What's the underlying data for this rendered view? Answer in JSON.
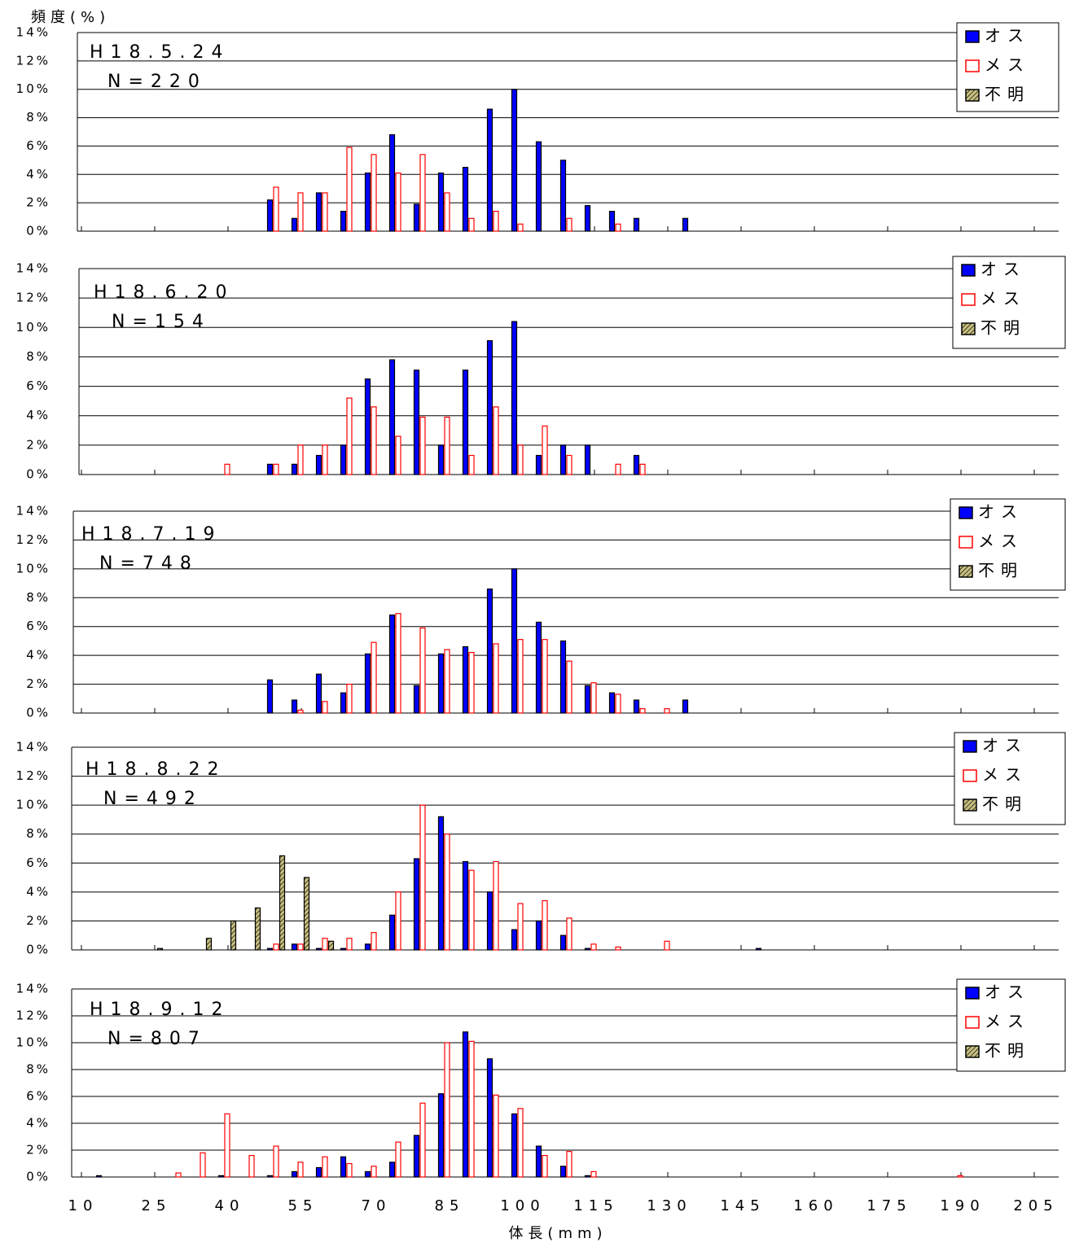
{
  "chart_data": [
    {
      "type": "bar",
      "title": "H18.5.24",
      "subtitle": "N=220",
      "y_label": "頻度(%)",
      "ylim": [
        0,
        14
      ],
      "yticks": [
        {
          "value": 0,
          "label": "0%"
        },
        {
          "value": 2,
          "label": "2%"
        },
        {
          "value": 4,
          "label": "4%"
        },
        {
          "value": 6,
          "label": "6%"
        },
        {
          "value": 8,
          "label": "8%"
        },
        {
          "value": 10,
          "label": "10%"
        },
        {
          "value": 12,
          "label": "12%"
        },
        {
          "value": 14,
          "label": "14%"
        }
      ],
      "grid": true,
      "x": [
        50,
        55,
        60,
        65,
        70,
        75,
        80,
        85,
        90,
        95,
        100,
        105,
        110,
        115,
        120,
        125,
        130,
        135
      ],
      "series": [
        {
          "name": "オス",
          "color": "#0000ff",
          "values": [
            2.2,
            0.9,
            2.7,
            1.4,
            4.1,
            6.8,
            1.9,
            4.1,
            4.5,
            8.6,
            10.0,
            6.3,
            5.0,
            1.8,
            1.4,
            0.9,
            0,
            0.9
          ]
        },
        {
          "name": "メス",
          "color": "#ff0000",
          "hollow": true,
          "values": [
            3.1,
            2.7,
            2.7,
            5.9,
            5.4,
            4.1,
            5.4,
            2.7,
            0.9,
            1.4,
            0.5,
            0,
            0.9,
            0,
            0.5,
            0,
            0,
            0
          ]
        },
        {
          "name": "不明",
          "color": "#c8c080",
          "hatch": true,
          "values": [
            0,
            0,
            0,
            0,
            0,
            0,
            0,
            0,
            0,
            0,
            0,
            0,
            0,
            0,
            0,
            0,
            0,
            0
          ]
        }
      ]
    },
    {
      "type": "bar",
      "title": "H18.6.20",
      "subtitle": "N=154",
      "ylim": [
        0,
        14
      ],
      "yticks": [
        {
          "value": 0,
          "label": "0%"
        },
        {
          "value": 2,
          "label": "2%"
        },
        {
          "value": 4,
          "label": "4%"
        },
        {
          "value": 6,
          "label": "6%"
        },
        {
          "value": 8,
          "label": "8%"
        },
        {
          "value": 10,
          "label": "10%"
        },
        {
          "value": 12,
          "label": "12%"
        },
        {
          "value": 14,
          "label": "14%"
        }
      ],
      "grid": true,
      "x": [
        40,
        45,
        50,
        55,
        60,
        65,
        70,
        75,
        80,
        85,
        90,
        95,
        100,
        105,
        110,
        115,
        120,
        125
      ],
      "series": [
        {
          "name": "オス",
          "color": "#0000ff",
          "values": [
            0,
            0,
            0.7,
            0.7,
            1.3,
            2.0,
            6.5,
            7.8,
            7.1,
            2.0,
            7.1,
            9.1,
            10.4,
            1.3,
            2.0,
            2.0,
            0,
            1.3
          ]
        },
        {
          "name": "メス",
          "color": "#ff0000",
          "hollow": true,
          "values": [
            0.7,
            0,
            0.7,
            2.0,
            2.0,
            5.2,
            4.6,
            2.6,
            3.9,
            3.9,
            1.3,
            4.6,
            2.0,
            3.3,
            1.3,
            0,
            0.7,
            0.7
          ]
        },
        {
          "name": "不明",
          "color": "#c8c080",
          "hatch": true,
          "values": [
            0,
            0,
            0,
            0,
            0,
            0,
            0,
            0,
            0,
            0,
            0,
            0,
            0,
            0,
            0,
            0,
            0,
            0
          ]
        }
      ]
    },
    {
      "type": "bar",
      "title": "H18.7.19",
      "subtitle": "N=748",
      "ylim": [
        0,
        14
      ],
      "yticks": [
        {
          "value": 0,
          "label": "0%"
        },
        {
          "value": 2,
          "label": "2%"
        },
        {
          "value": 4,
          "label": "4%"
        },
        {
          "value": 6,
          "label": "6%"
        },
        {
          "value": 8,
          "label": "8%"
        },
        {
          "value": 10,
          "label": "10%"
        },
        {
          "value": 12,
          "label": "12%"
        },
        {
          "value": 14,
          "label": "14%"
        }
      ],
      "grid": true,
      "x": [
        50,
        55,
        60,
        65,
        70,
        75,
        80,
        85,
        90,
        95,
        100,
        105,
        110,
        115,
        120,
        125,
        130,
        135
      ],
      "series": [
        {
          "name": "オス",
          "color": "#0000ff",
          "values": [
            2.3,
            0.9,
            2.7,
            1.4,
            4.1,
            6.8,
            1.9,
            4.1,
            4.6,
            8.6,
            10.0,
            6.3,
            5.0,
            1.9,
            1.4,
            0.9,
            0,
            0.9
          ]
        },
        {
          "name": "メス",
          "color": "#ff0000",
          "hollow": true,
          "values": [
            0,
            0.2,
            0.8,
            2.0,
            4.9,
            6.9,
            5.9,
            4.4,
            4.2,
            4.8,
            5.1,
            5.1,
            3.6,
            2.1,
            1.3,
            0.3,
            0.3,
            0
          ]
        },
        {
          "name": "不明",
          "color": "#c8c080",
          "hatch": true,
          "values": [
            0,
            0,
            0,
            0,
            0,
            0,
            0,
            0,
            0,
            0,
            0,
            0,
            0,
            0,
            0,
            0,
            0,
            0
          ]
        }
      ]
    },
    {
      "type": "bar",
      "title": "H18.8.22",
      "subtitle": "N=492",
      "ylim": [
        0,
        14
      ],
      "yticks": [
        {
          "value": 0,
          "label": "0%"
        },
        {
          "value": 2,
          "label": "2%"
        },
        {
          "value": 4,
          "label": "4%"
        },
        {
          "value": 6,
          "label": "6%"
        },
        {
          "value": 8,
          "label": "8%"
        },
        {
          "value": 10,
          "label": "10%"
        },
        {
          "value": 12,
          "label": "12%"
        },
        {
          "value": 14,
          "label": "14%"
        }
      ],
      "grid": true,
      "x": [
        25,
        30,
        35,
        40,
        45,
        50,
        55,
        60,
        65,
        70,
        75,
        80,
        85,
        90,
        95,
        100,
        105,
        110,
        115,
        120,
        125,
        130,
        135,
        140,
        145,
        150
      ],
      "series": [
        {
          "name": "オス",
          "color": "#0000ff",
          "values": [
            0,
            0,
            0,
            0,
            0,
            0.1,
            0.4,
            0.1,
            0.1,
            0.4,
            2.4,
            6.3,
            9.2,
            6.1,
            4.0,
            1.4,
            2.0,
            1.0,
            0.1,
            0,
            0,
            0,
            0,
            0,
            0,
            0.1
          ]
        },
        {
          "name": "メス",
          "color": "#ff0000",
          "hollow": true,
          "values": [
            0,
            0,
            0,
            0,
            0,
            0.4,
            0.4,
            0.8,
            0.8,
            1.2,
            4.0,
            10.0,
            8.0,
            5.5,
            6.1,
            3.2,
            3.4,
            2.2,
            0.4,
            0.2,
            0,
            0.6,
            0,
            0,
            0,
            0
          ]
        },
        {
          "name": "不明",
          "color": "#c8c080",
          "hatch": true,
          "values": [
            0.1,
            0,
            0.8,
            2.0,
            2.9,
            6.5,
            5.0,
            0.6,
            0,
            0,
            0,
            0,
            0,
            0,
            0,
            0,
            0,
            0,
            0,
            0,
            0,
            0,
            0,
            0,
            0,
            0
          ]
        }
      ]
    },
    {
      "type": "bar",
      "title": "H18.9.12",
      "subtitle": "N=807",
      "x_label": "体長(mm)",
      "ylim": [
        0,
        14
      ],
      "yticks": [
        {
          "value": 0,
          "label": "0%"
        },
        {
          "value": 2,
          "label": "2%"
        },
        {
          "value": 4,
          "label": "4%"
        },
        {
          "value": 6,
          "label": "6%"
        },
        {
          "value": 8,
          "label": "8%"
        },
        {
          "value": 10,
          "label": "10%"
        },
        {
          "value": 12,
          "label": "12%"
        },
        {
          "value": 14,
          "label": "14%"
        }
      ],
      "grid": true,
      "xlim": [
        8.5,
        210
      ],
      "xticks": [
        10,
        25,
        40,
        55,
        70,
        85,
        100,
        115,
        130,
        145,
        160,
        175,
        190,
        205
      ],
      "x": [
        15,
        20,
        25,
        30,
        35,
        40,
        45,
        50,
        55,
        60,
        65,
        70,
        75,
        80,
        85,
        90,
        95,
        100,
        105,
        110,
        115,
        120,
        125,
        130,
        135,
        140,
        145,
        150,
        155,
        160,
        165,
        170,
        175,
        180,
        185,
        190
      ],
      "series": [
        {
          "name": "オス",
          "color": "#0000ff",
          "values": [
            0.1,
            0,
            0,
            0,
            0,
            0.1,
            0,
            0.1,
            0.4,
            0.7,
            1.5,
            0.4,
            1.1,
            3.1,
            6.2,
            10.8,
            8.8,
            4.7,
            2.3,
            0.8,
            0.1,
            0,
            0,
            0,
            0,
            0,
            0,
            0,
            0,
            0,
            0,
            0,
            0,
            0,
            0,
            0
          ]
        },
        {
          "name": "メス",
          "color": "#ff0000",
          "hollow": true,
          "values": [
            0,
            0,
            0,
            0.3,
            1.8,
            4.7,
            1.6,
            2.3,
            1.1,
            1.5,
            1.0,
            0.8,
            2.6,
            5.5,
            10.0,
            10.1,
            6.1,
            5.1,
            1.6,
            1.9,
            0.4,
            0,
            0,
            0,
            0,
            0,
            0,
            0,
            0,
            0,
            0,
            0,
            0,
            0,
            0,
            0.1
          ]
        },
        {
          "name": "不明",
          "color": "#c8c080",
          "hatch": true,
          "values": [
            0,
            0,
            0,
            0,
            0,
            0,
            0,
            0,
            0,
            0,
            0,
            0,
            0,
            0,
            0,
            0,
            0,
            0,
            0,
            0,
            0,
            0,
            0,
            0,
            0,
            0,
            0,
            0,
            0,
            0,
            0,
            0,
            0,
            0,
            0,
            0
          ]
        }
      ]
    }
  ]
}
